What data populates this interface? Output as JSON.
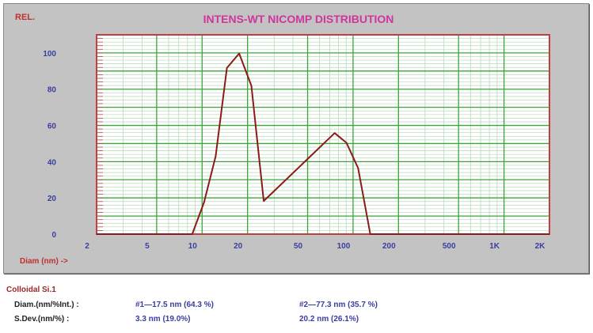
{
  "chart_data": {
    "type": "line",
    "title": "INTENS-WT NICOMP DISTRIBUTION",
    "ylabel": "REL.",
    "xlabel": "Diam (nm) ->",
    "xscale": "log",
    "xlim": [
      2,
      2000
    ],
    "ylim": [
      0,
      110
    ],
    "grid": true,
    "x_ticks": [
      2,
      5,
      10,
      20,
      50,
      100,
      200,
      500,
      1000,
      2000
    ],
    "x_tick_labels": [
      "2",
      "5",
      "10",
      "20",
      "50",
      "100",
      "200",
      "500",
      "1K",
      "2K"
    ],
    "y_ticks": [
      0,
      20,
      40,
      60,
      80,
      100
    ],
    "y_tick_labels": [
      "0",
      "20",
      "40",
      "60",
      "80",
      "100"
    ],
    "series": [
      {
        "color": "#8b1a1a",
        "x": [
          2,
          8.6,
          10.3,
          12.3,
          14.6,
          17.6,
          21.2,
          25.6,
          75.5,
          90.4,
          108,
          130,
          2000
        ],
        "y": [
          0,
          0,
          17.5,
          43,
          91.7,
          99.7,
          81.9,
          18.3,
          55.8,
          50.4,
          36.5,
          0,
          0
        ]
      }
    ]
  },
  "colors": {
    "background": "#c3c3c3",
    "title": "#d0359f",
    "axis_labels": "#3a3ea0",
    "frame": "#c04040",
    "major_grid": "#3aa63a",
    "minor_grid": "#b8d8b8"
  },
  "results": {
    "sample": "Colloidal Si.1",
    "diam_label": "Diam.(nm/%Int.) :",
    "sdev_label": "S.Dev.(nm/%) :",
    "peak1_diam": "#1—17.5 nm (64.3 %)",
    "peak2_diam": "#2—77.3 nm (35.7 %)",
    "peak1_sdev": "3.3 nm (19.0%)",
    "peak2_sdev": "20.2 nm (26.1%)"
  }
}
